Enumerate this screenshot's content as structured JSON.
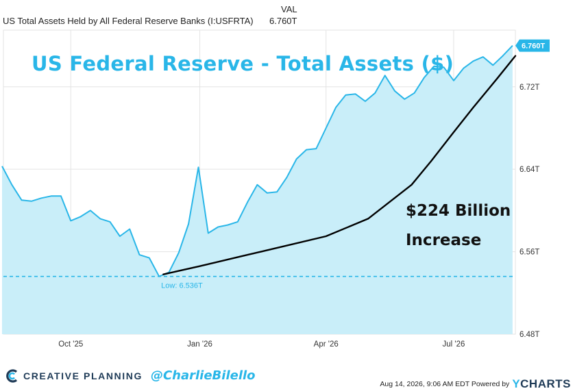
{
  "legend": {
    "column_header": "VAL",
    "series_name": "US Total Assets Held by All Federal Reserve Banks (I:USFRTA)",
    "series_value": "6.760T"
  },
  "overlay_title": "US Federal Reserve - Total Assets ($)",
  "annotation": {
    "line1": "$224 Billion",
    "line2": "Increase"
  },
  "last_value_badge": "6.760T",
  "low_label": "Low: 6.536T",
  "footer": {
    "brand": "CREATIVE PLANNING",
    "handle": "@CharlieBilello",
    "timestamp": "Aug 14, 2026, 9:06 AM EDT Powered by",
    "provider": "CHARTS",
    "provider_initial": "Y",
    "logo_icon": "creative-planning-logo-icon"
  },
  "colors": {
    "line": "#29b6e8",
    "fill": "#c9eef9",
    "low_line": "#29b6e8",
    "trend": "#000000",
    "badge": "#29b6e8"
  },
  "chart_data": {
    "type": "area",
    "title": "",
    "xlabel": "",
    "ylabel": "",
    "ylim": [
      6.48,
      6.775
    ],
    "xlim": [
      "2025-08-14",
      "2026-08-14"
    ],
    "y_ticks": [
      {
        "value": 6.48,
        "label": "6.48T"
      },
      {
        "value": 6.56,
        "label": "6.56T"
      },
      {
        "value": 6.64,
        "label": "6.64T"
      },
      {
        "value": 6.72,
        "label": "6.72T"
      }
    ],
    "x_ticks": [
      {
        "date": "2025-10-01",
        "label": "Oct '25"
      },
      {
        "date": "2026-01-01",
        "label": "Jan '26"
      },
      {
        "date": "2026-04-01",
        "label": "Apr '26"
      },
      {
        "date": "2026-07-01",
        "label": "Jul '26"
      }
    ],
    "grid": true,
    "low": {
      "value": 6.536,
      "date": "2025-12-03"
    },
    "series": [
      {
        "x": [
          "2025-08-13",
          "2025-08-20",
          "2025-08-27",
          "2025-09-03",
          "2025-09-10",
          "2025-09-17",
          "2025-09-24",
          "2025-10-01",
          "2025-10-08",
          "2025-10-15",
          "2025-10-22",
          "2025-10-29",
          "2025-11-05",
          "2025-11-12",
          "2025-11-19",
          "2025-11-26",
          "2025-12-03",
          "2025-12-10",
          "2025-12-17",
          "2025-12-24",
          "2025-12-31",
          "2026-01-07",
          "2026-01-14",
          "2026-01-21",
          "2026-01-28",
          "2026-02-04",
          "2026-02-11",
          "2026-02-18",
          "2026-02-25",
          "2026-03-04",
          "2026-03-11",
          "2026-03-18",
          "2026-03-25",
          "2026-04-01",
          "2026-04-08",
          "2026-04-15",
          "2026-04-22",
          "2026-04-29",
          "2026-05-06",
          "2026-05-13",
          "2026-05-20",
          "2026-05-27",
          "2026-06-03",
          "2026-06-10",
          "2026-06-17",
          "2026-06-24",
          "2026-07-01",
          "2026-07-08",
          "2026-07-15",
          "2026-07-22",
          "2026-07-29",
          "2026-08-05",
          "2026-08-12"
        ],
        "values": [
          6.643,
          6.625,
          6.61,
          6.609,
          6.612,
          6.614,
          6.614,
          6.59,
          6.594,
          6.6,
          6.592,
          6.589,
          6.575,
          6.582,
          6.557,
          6.554,
          6.536,
          6.54,
          6.559,
          6.587,
          6.642,
          6.578,
          6.584,
          6.586,
          6.589,
          6.608,
          6.625,
          6.617,
          6.618,
          6.632,
          6.65,
          6.659,
          6.66,
          6.68,
          6.7,
          6.712,
          6.713,
          6.706,
          6.714,
          6.731,
          6.716,
          6.708,
          6.714,
          6.729,
          6.74,
          6.739,
          6.726,
          6.738,
          6.745,
          6.749,
          6.741,
          6.75,
          6.76
        ]
      }
    ],
    "trend_line": {
      "x": [
        "2025-12-06",
        "2026-01-01",
        "2026-02-01",
        "2026-03-01",
        "2026-04-01",
        "2026-05-01",
        "2026-06-01",
        "2026-06-15",
        "2026-07-01",
        "2026-07-15",
        "2026-08-01",
        "2026-08-14"
      ],
      "values": [
        6.538,
        6.546,
        6.556,
        6.565,
        6.575,
        6.592,
        6.625,
        6.648,
        6.676,
        6.7,
        6.728,
        6.75
      ]
    }
  }
}
